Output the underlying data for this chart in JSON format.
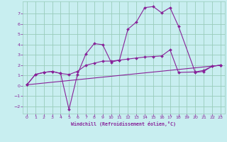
{
  "xlabel": "Windchill (Refroidissement éolien,°C)",
  "bg_color": "#c8eef0",
  "grid_color": "#99ccbb",
  "line_color": "#882299",
  "spine_color": "#99ccbb",
  "xlim": [
    -0.5,
    23.5
  ],
  "ylim": [
    -2.7,
    8.2
  ],
  "xticks": [
    0,
    1,
    2,
    3,
    4,
    5,
    6,
    7,
    8,
    9,
    10,
    11,
    12,
    13,
    14,
    15,
    16,
    17,
    18,
    19,
    20,
    21,
    22,
    23
  ],
  "yticks": [
    -2,
    -1,
    0,
    1,
    2,
    3,
    4,
    5,
    6,
    7
  ],
  "series1_x": [
    0,
    1,
    2,
    3,
    4,
    5,
    6,
    7,
    8,
    9,
    10,
    11,
    12,
    13,
    14,
    15,
    16,
    17,
    18,
    20,
    21,
    22,
    23
  ],
  "series1_y": [
    0.1,
    1.1,
    1.3,
    1.4,
    1.2,
    -2.3,
    1.1,
    3.1,
    4.1,
    4.0,
    2.3,
    2.5,
    5.5,
    6.2,
    7.6,
    7.7,
    7.1,
    7.6,
    5.8,
    1.3,
    1.4,
    1.9,
    2.0
  ],
  "series2_x": [
    0,
    1,
    2,
    3,
    4,
    5,
    6,
    7,
    8,
    9,
    10,
    11,
    12,
    13,
    14,
    15,
    16,
    17,
    18,
    20,
    21,
    22,
    23
  ],
  "series2_y": [
    0.1,
    1.1,
    1.3,
    1.4,
    1.2,
    1.1,
    1.4,
    2.0,
    2.2,
    2.4,
    2.4,
    2.5,
    2.6,
    2.7,
    2.8,
    2.85,
    2.9,
    3.5,
    1.3,
    1.35,
    1.5,
    1.9,
    2.0
  ],
  "series3_x": [
    0,
    23
  ],
  "series3_y": [
    0.1,
    2.0
  ]
}
